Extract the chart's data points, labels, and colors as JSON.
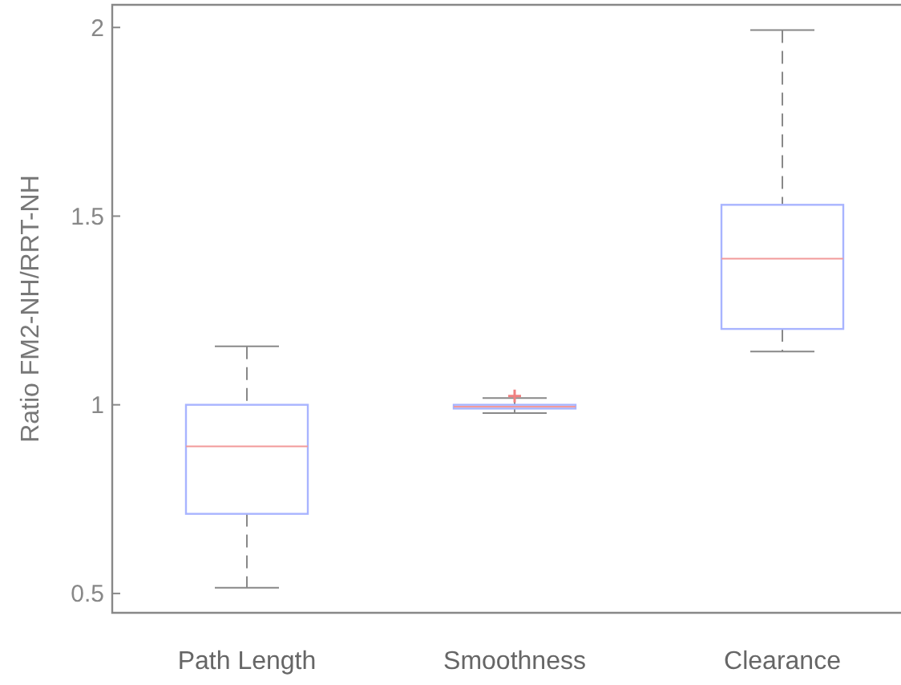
{
  "chart_data": {
    "type": "box",
    "ylabel": "Ratio FM2-NH/RRT-NH",
    "categories": [
      "Path Length",
      "Smoothness",
      "Clearance"
    ],
    "ylim": [
      0.45,
      2.06
    ],
    "yticks": [
      0.5,
      1,
      1.5,
      2
    ],
    "grid": false,
    "series": [
      {
        "color": "#a8b4ff",
        "boxes": [
          {
            "low": 0.515,
            "q1": 0.711,
            "median": 0.89,
            "q3": 1.0,
            "high": 1.155
          },
          {
            "low": 0.978,
            "q1": 0.99,
            "median": 0.995,
            "q3": 1.0,
            "high": 1.018,
            "outliers": [
              1.023
            ]
          },
          {
            "low": 1.141,
            "q1": 1.201,
            "median": 1.387,
            "q3": 1.53,
            "high": 1.993
          }
        ]
      }
    ]
  }
}
